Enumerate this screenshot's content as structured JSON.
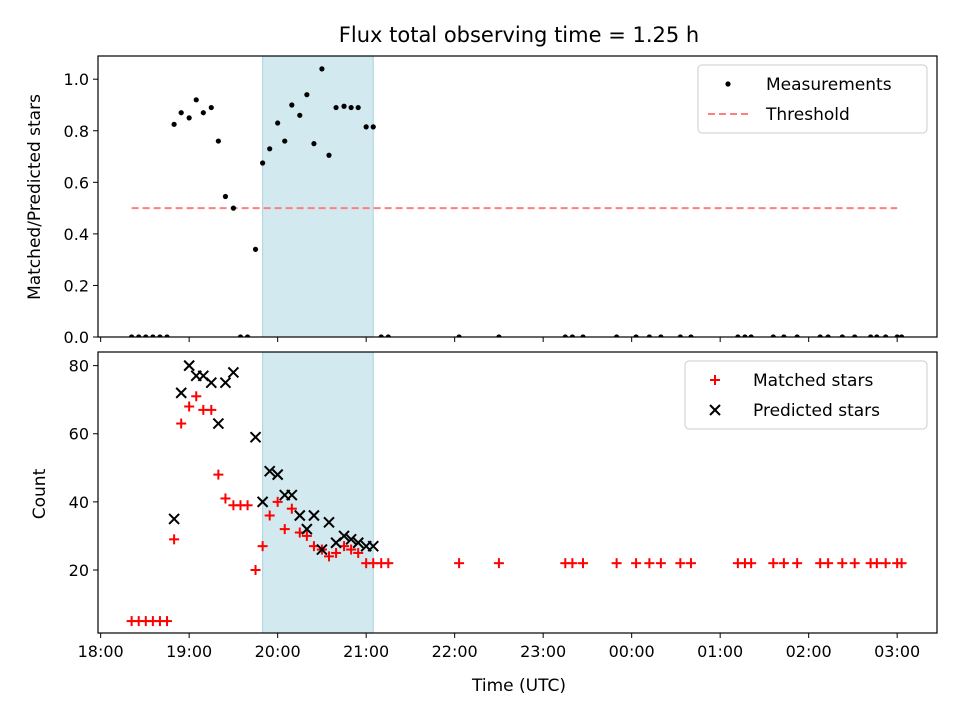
{
  "chart_data": {
    "title": "Flux total observing time = 1.25 h",
    "xlabel": "Time (UTC)",
    "xticks": [
      "18:00",
      "19:00",
      "20:00",
      "21:00",
      "22:00",
      "23:00",
      "00:00",
      "01:00",
      "02:00",
      "03:00"
    ],
    "xlim_hours": [
      17.97,
      27.45
    ],
    "shaded_interval_hours": [
      19.83,
      21.08
    ],
    "shade_color": "#d2e9ef",
    "panels": [
      {
        "type": "scatter",
        "ylabel": "Matched/Predicted stars",
        "ylim": [
          0,
          1.09
        ],
        "yticks": [
          "0.0",
          "0.2",
          "0.4",
          "0.6",
          "0.8",
          "1.0"
        ],
        "ytick_values": [
          0,
          0.2,
          0.4,
          0.6,
          0.8,
          1.0
        ],
        "legend": [
          "Measurements",
          "Threshold"
        ],
        "threshold": {
          "name": "Threshold",
          "value": 0.5,
          "x_range": [
            18.35,
            27.0
          ],
          "color": "#ff7f7f"
        },
        "series": [
          {
            "name": "Measurements",
            "color": "#000000",
            "x": [
              18.35,
              18.43,
              18.51,
              18.59,
              18.67,
              18.75,
              18.83,
              18.91,
              19.0,
              19.08,
              19.16,
              19.25,
              19.33,
              19.41,
              19.5,
              19.58,
              19.66,
              19.75,
              19.83,
              19.91,
              20.0,
              20.08,
              20.16,
              20.25,
              20.33,
              20.41,
              20.5,
              20.58,
              20.66,
              20.75,
              20.83,
              20.91,
              21.0,
              21.08,
              21.17,
              21.25,
              22.05,
              22.5,
              23.25,
              23.33,
              23.45,
              23.83,
              24.05,
              24.2,
              24.33,
              24.55,
              24.67,
              25.2,
              25.28,
              25.35,
              25.6,
              25.72,
              25.87,
              26.13,
              26.22,
              26.38,
              26.52,
              26.7,
              26.77,
              26.87,
              27.0,
              27.05
            ],
            "y": [
              0,
              0,
              0,
              0,
              0,
              0,
              0.825,
              0.87,
              0.85,
              0.92,
              0.87,
              0.89,
              0.76,
              0.545,
              0.5,
              0,
              0,
              0.34,
              0.675,
              0.73,
              0.83,
              0.76,
              0.9,
              0.86,
              0.94,
              0.75,
              1.04,
              0.705,
              0.89,
              0.895,
              0.89,
              0.89,
              0.815,
              0.815,
              0,
              0,
              0,
              0,
              0,
              0,
              0,
              0,
              0,
              0,
              0,
              0,
              0,
              0,
              0,
              0,
              0,
              0,
              0,
              0,
              0,
              0,
              0,
              0,
              0,
              0,
              0,
              0
            ]
          }
        ]
      },
      {
        "type": "scatter",
        "ylabel": "Count",
        "ylim": [
          1.5,
          84
        ],
        "yticks": [
          "20",
          "40",
          "60",
          "80"
        ],
        "ytick_values": [
          20,
          40,
          60,
          80
        ],
        "legend": [
          "Matched stars",
          "Predicted stars"
        ],
        "series": [
          {
            "name": "Matched stars",
            "color": "#ff0000",
            "marker": "+",
            "x": [
              18.35,
              18.43,
              18.51,
              18.59,
              18.67,
              18.75,
              18.83,
              18.91,
              19.0,
              19.08,
              19.16,
              19.25,
              19.33,
              19.41,
              19.5,
              19.58,
              19.66,
              19.75,
              19.83,
              19.91,
              20.0,
              20.08,
              20.16,
              20.25,
              20.33,
              20.41,
              20.5,
              20.58,
              20.66,
              20.75,
              20.83,
              20.91,
              21.0,
              21.08,
              21.17,
              21.25,
              22.05,
              22.5,
              23.25,
              23.33,
              23.45,
              23.83,
              24.05,
              24.2,
              24.33,
              24.55,
              24.67,
              25.2,
              25.28,
              25.35,
              25.6,
              25.72,
              25.87,
              26.13,
              26.22,
              26.38,
              26.52,
              26.7,
              26.77,
              26.87,
              27.0,
              27.05
            ],
            "y": [
              5,
              5,
              5,
              5,
              5,
              5,
              29,
              63,
              68,
              71,
              67,
              67,
              48,
              41,
              39,
              39,
              39,
              20,
              27,
              36,
              40,
              32,
              38,
              31,
              30,
              27,
              26,
              24,
              25,
              27,
              26,
              25,
              22,
              22,
              22,
              22,
              22,
              22,
              22,
              22,
              22,
              22,
              22,
              22,
              22,
              22,
              22,
              22,
              22,
              22,
              22,
              22,
              22,
              22,
              22,
              22,
              22,
              22,
              22,
              22,
              22,
              22
            ]
          },
          {
            "name": "Predicted stars",
            "color": "#000000",
            "marker": "x",
            "x": [
              18.83,
              18.91,
              19.0,
              19.08,
              19.16,
              19.25,
              19.33,
              19.41,
              19.5,
              19.75,
              19.83,
              19.91,
              20.0,
              20.08,
              20.16,
              20.25,
              20.33,
              20.41,
              20.5,
              20.58,
              20.66,
              20.75,
              20.83,
              20.91,
              21.0,
              21.08
            ],
            "y": [
              35,
              72,
              80,
              77,
              77,
              75,
              63,
              75,
              78,
              59,
              40,
              49,
              48,
              42,
              42,
              36,
              32,
              36,
              26,
              34,
              28,
              30,
              29,
              28,
              27,
              27
            ]
          }
        ]
      }
    ]
  }
}
